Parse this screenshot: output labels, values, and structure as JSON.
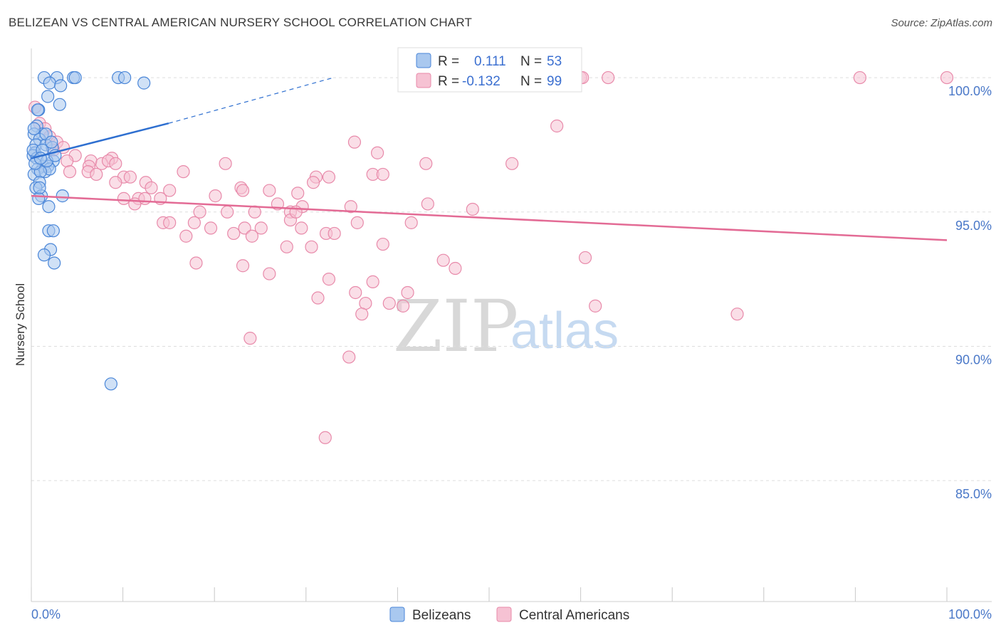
{
  "title": "BELIZEAN VS CENTRAL AMERICAN NURSERY SCHOOL CORRELATION CHART",
  "source": "Source: ZipAtlas.com",
  "watermark": {
    "zip": "ZIP",
    "atlas": "atlas"
  },
  "legend_box": {
    "row1": {
      "r_label": "R =",
      "r_value": "0.111",
      "n_label": "N =",
      "n_value": "53"
    },
    "row2": {
      "r_label": "R =",
      "r_value": "-0.132",
      "n_label": "N =",
      "n_value": "99"
    }
  },
  "bottom_legend": {
    "series1": "Belizeans",
    "series2": "Central Americans"
  },
  "colors": {
    "blue_fill": "#a9c8ef",
    "blue_stroke": "#4a86d8",
    "blue_line": "#2e6fd0",
    "pink_fill": "#f6c2d3",
    "pink_stroke": "#e88aaa",
    "pink_line": "#e36b95",
    "grid": "#dddddd",
    "axis_label": "#4a78c8"
  },
  "chart_data": {
    "type": "scatter",
    "title": "BELIZEAN VS CENTRAL AMERICAN NURSERY SCHOOL CORRELATION CHART",
    "xlabel": "",
    "ylabel": "Nursery School",
    "xlim": [
      0,
      100
    ],
    "ylim": [
      80.5,
      101.3
    ],
    "x_tick_labels": {
      "left": "0.0%",
      "right": "100.0%"
    },
    "y_ticks": [
      {
        "value": 100,
        "label": "100.0%"
      },
      {
        "value": 95,
        "label": "95.0%"
      },
      {
        "value": 90,
        "label": "90.0%"
      },
      {
        "value": 85,
        "label": "85.0%"
      }
    ],
    "series": [
      {
        "name": "Belizeans",
        "r": 0.111,
        "n": 53,
        "trend": {
          "x0": 0,
          "y0": 97.0,
          "x1": 15,
          "y1": 98.3,
          "dash_to_x": 33,
          "dash_to_y": 100.0
        },
        "points": [
          [
            1.4,
            100
          ],
          [
            2.8,
            100
          ],
          [
            4.6,
            100
          ],
          [
            4.8,
            100
          ],
          [
            9.5,
            100
          ],
          [
            10.2,
            100
          ],
          [
            2.0,
            99.8
          ],
          [
            3.2,
            99.7
          ],
          [
            12.3,
            99.8
          ],
          [
            1.8,
            99.3
          ],
          [
            3.1,
            99.0
          ],
          [
            0.8,
            98.8
          ],
          [
            0.6,
            98.2
          ],
          [
            1.2,
            97.9
          ],
          [
            0.3,
            97.9
          ],
          [
            0.9,
            97.7
          ],
          [
            0.5,
            97.5
          ],
          [
            1.6,
            97.5
          ],
          [
            2.3,
            97.4
          ],
          [
            0.4,
            97.2
          ],
          [
            0.2,
            97.1
          ],
          [
            0.6,
            97.0
          ],
          [
            2.4,
            96.9
          ],
          [
            1.3,
            96.7
          ],
          [
            1.8,
            96.7
          ],
          [
            0.7,
            96.6
          ],
          [
            1.5,
            96.5
          ],
          [
            2.0,
            96.6
          ],
          [
            0.3,
            96.4
          ],
          [
            1.0,
            96.5
          ],
          [
            0.9,
            96.1
          ],
          [
            0.5,
            95.9
          ],
          [
            1.1,
            95.6
          ],
          [
            0.8,
            95.5
          ],
          [
            3.4,
            95.6
          ],
          [
            1.9,
            95.2
          ],
          [
            1.9,
            94.3
          ],
          [
            2.4,
            94.3
          ],
          [
            2.1,
            93.6
          ],
          [
            1.4,
            93.4
          ],
          [
            2.5,
            93.1
          ],
          [
            8.7,
            88.6
          ],
          [
            0.2,
            97.3
          ],
          [
            1.6,
            97.9
          ],
          [
            0.7,
            98.8
          ],
          [
            2.2,
            97.6
          ],
          [
            0.4,
            96.8
          ],
          [
            1.2,
            97.3
          ],
          [
            0.9,
            95.9
          ],
          [
            1.7,
            96.9
          ],
          [
            0.3,
            98.1
          ],
          [
            2.6,
            97.1
          ],
          [
            1.0,
            97.0
          ]
        ]
      },
      {
        "name": "Central Americans",
        "r": -0.132,
        "n": 99,
        "trend": {
          "x0": 0,
          "y0": 95.6,
          "x1": 100,
          "y1": 93.95
        },
        "points": [
          [
            60,
            100
          ],
          [
            60.2,
            100
          ],
          [
            90.5,
            100
          ],
          [
            100,
            100
          ],
          [
            63,
            100
          ],
          [
            0.4,
            98.9
          ],
          [
            0.9,
            98.3
          ],
          [
            57.4,
            98.2
          ],
          [
            1.5,
            98.1
          ],
          [
            2.0,
            97.8
          ],
          [
            2.8,
            97.6
          ],
          [
            3.5,
            97.4
          ],
          [
            2.4,
            97.3
          ],
          [
            35.3,
            97.6
          ],
          [
            37.8,
            97.2
          ],
          [
            4.8,
            97.1
          ],
          [
            3.9,
            96.9
          ],
          [
            6.5,
            96.9
          ],
          [
            8.8,
            97.0
          ],
          [
            7.7,
            96.8
          ],
          [
            8.4,
            96.9
          ],
          [
            43.1,
            96.8
          ],
          [
            52.5,
            96.8
          ],
          [
            6.3,
            96.7
          ],
          [
            21.2,
            96.8
          ],
          [
            4.2,
            96.5
          ],
          [
            6.2,
            96.5
          ],
          [
            7.1,
            96.4
          ],
          [
            10.1,
            96.3
          ],
          [
            9.2,
            96.1
          ],
          [
            10.8,
            96.3
          ],
          [
            12.5,
            96.1
          ],
          [
            13.1,
            95.9
          ],
          [
            16.6,
            96.5
          ],
          [
            31.1,
            96.3
          ],
          [
            37.3,
            96.4
          ],
          [
            38.4,
            96.4
          ],
          [
            32.5,
            96.3
          ],
          [
            30.8,
            96.1
          ],
          [
            15.1,
            95.8
          ],
          [
            22.9,
            95.9
          ],
          [
            23.1,
            95.8
          ],
          [
            26.0,
            95.8
          ],
          [
            29.1,
            95.7
          ],
          [
            20.1,
            95.6
          ],
          [
            10.1,
            95.5
          ],
          [
            11.7,
            95.5
          ],
          [
            11.3,
            95.3
          ],
          [
            12.4,
            95.5
          ],
          [
            14.1,
            95.5
          ],
          [
            18.4,
            95.0
          ],
          [
            21.4,
            95.0
          ],
          [
            24.4,
            95.0
          ],
          [
            26.9,
            95.3
          ],
          [
            28.3,
            95.0
          ],
          [
            29.6,
            95.2
          ],
          [
            34.9,
            95.2
          ],
          [
            43.3,
            95.3
          ],
          [
            48.2,
            95.1
          ],
          [
            14.4,
            94.6
          ],
          [
            15.1,
            94.6
          ],
          [
            17.8,
            94.6
          ],
          [
            19.6,
            94.4
          ],
          [
            22.1,
            94.2
          ],
          [
            23.3,
            94.4
          ],
          [
            25.1,
            94.4
          ],
          [
            28.3,
            94.7
          ],
          [
            29.5,
            94.4
          ],
          [
            32.2,
            94.2
          ],
          [
            33.1,
            94.2
          ],
          [
            35.6,
            94.6
          ],
          [
            16.9,
            94.1
          ],
          [
            24.1,
            94.1
          ],
          [
            27.9,
            93.7
          ],
          [
            30.6,
            93.7
          ],
          [
            38.4,
            93.8
          ],
          [
            18.0,
            93.1
          ],
          [
            23.1,
            93.0
          ],
          [
            45.0,
            93.2
          ],
          [
            46.3,
            92.9
          ],
          [
            60.5,
            93.3
          ],
          [
            26.0,
            92.7
          ],
          [
            32.5,
            92.5
          ],
          [
            37.3,
            92.4
          ],
          [
            35.4,
            92.0
          ],
          [
            41.1,
            92.0
          ],
          [
            31.3,
            91.8
          ],
          [
            36.5,
            91.6
          ],
          [
            39.1,
            91.6
          ],
          [
            40.6,
            91.5
          ],
          [
            61.6,
            91.5
          ],
          [
            36.1,
            91.2
          ],
          [
            77.1,
            91.2
          ],
          [
            23.9,
            90.3
          ],
          [
            34.7,
            89.6
          ],
          [
            32.1,
            86.6
          ],
          [
            28.9,
            95.0
          ],
          [
            41.5,
            94.6
          ],
          [
            9.2,
            96.8
          ]
        ]
      }
    ]
  }
}
